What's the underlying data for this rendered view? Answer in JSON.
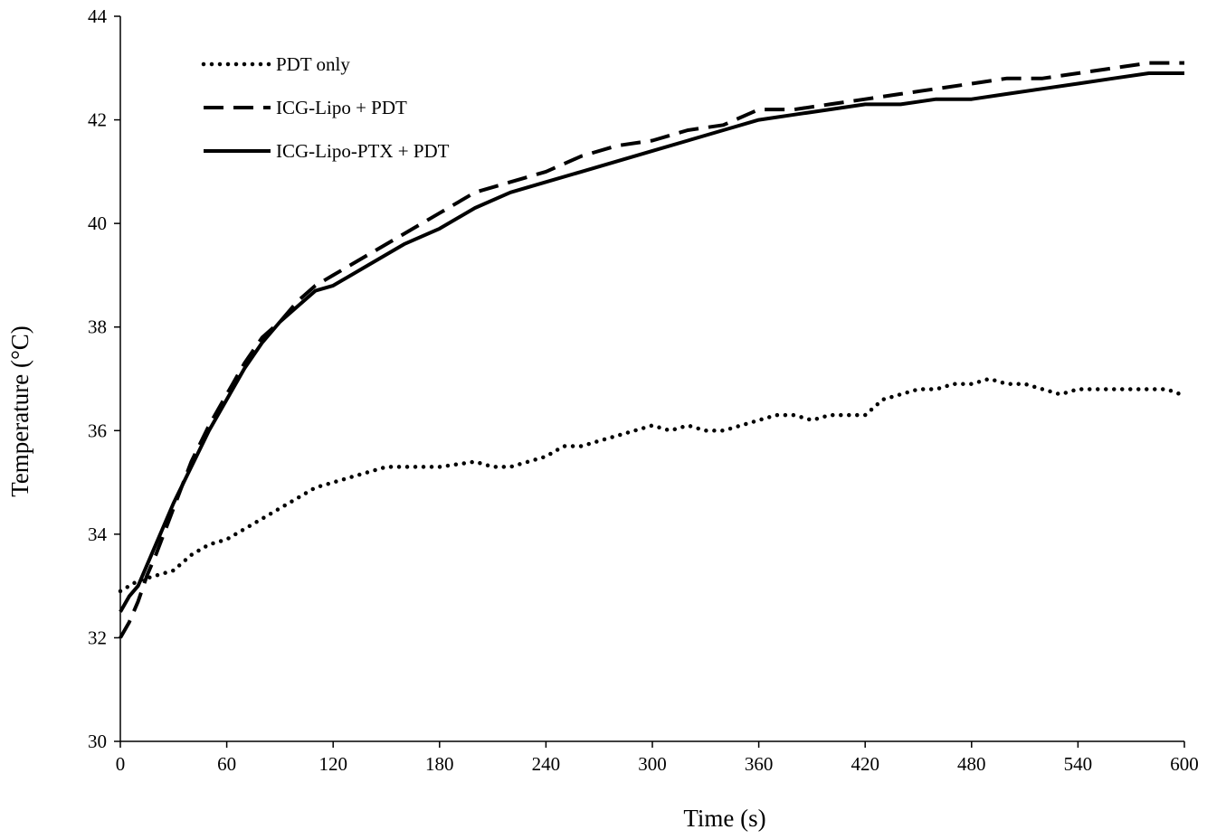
{
  "chart_data": {
    "type": "line",
    "title": "",
    "xlabel": "Time (s)",
    "ylabel": "Temperature (°C)",
    "xlim": [
      0,
      600
    ],
    "ylim": [
      30,
      44
    ],
    "xticks": [
      0,
      60,
      120,
      180,
      240,
      300,
      360,
      420,
      480,
      540,
      600
    ],
    "yticks": [
      30,
      32,
      34,
      36,
      38,
      40,
      42,
      44
    ],
    "grid": false,
    "legend_position": "top-left",
    "series": [
      {
        "name": "PDT only",
        "style": "dotted",
        "color": "#000000",
        "x": [
          0,
          10,
          20,
          30,
          40,
          50,
          60,
          70,
          80,
          90,
          100,
          110,
          120,
          130,
          140,
          150,
          160,
          180,
          200,
          210,
          220,
          230,
          240,
          250,
          260,
          270,
          280,
          290,
          300,
          310,
          320,
          330,
          340,
          350,
          360,
          370,
          380,
          390,
          400,
          420,
          430,
          440,
          450,
          460,
          470,
          480,
          490,
          500,
          510,
          520,
          530,
          540,
          560,
          570,
          580,
          590,
          598
        ],
        "y": [
          32.9,
          33.1,
          33.2,
          33.3,
          33.6,
          33.8,
          33.9,
          34.1,
          34.3,
          34.5,
          34.7,
          34.9,
          35.0,
          35.1,
          35.2,
          35.3,
          35.3,
          35.3,
          35.4,
          35.3,
          35.3,
          35.4,
          35.5,
          35.7,
          35.7,
          35.8,
          35.9,
          36.0,
          36.1,
          36.0,
          36.1,
          36.0,
          36.0,
          36.1,
          36.2,
          36.3,
          36.3,
          36.2,
          36.3,
          36.3,
          36.6,
          36.7,
          36.8,
          36.8,
          36.9,
          36.9,
          37.0,
          36.9,
          36.9,
          36.8,
          36.7,
          36.8,
          36.8,
          36.8,
          36.8,
          36.8,
          36.7
        ]
      },
      {
        "name": "ICG-Lipo + PDT",
        "style": "dashed",
        "color": "#000000",
        "x": [
          0,
          5,
          10,
          15,
          20,
          30,
          40,
          50,
          60,
          70,
          80,
          90,
          100,
          110,
          120,
          140,
          160,
          180,
          200,
          220,
          240,
          260,
          280,
          300,
          320,
          340,
          360,
          380,
          400,
          420,
          440,
          460,
          480,
          500,
          520,
          540,
          560,
          580,
          600
        ],
        "y": [
          32.0,
          32.3,
          32.7,
          33.2,
          33.6,
          34.5,
          35.4,
          36.1,
          36.7,
          37.3,
          37.8,
          38.1,
          38.5,
          38.8,
          39.0,
          39.4,
          39.8,
          40.2,
          40.6,
          40.8,
          41.0,
          41.3,
          41.5,
          41.6,
          41.8,
          41.9,
          42.2,
          42.2,
          42.3,
          42.4,
          42.5,
          42.6,
          42.7,
          42.8,
          42.8,
          42.9,
          43.0,
          43.1,
          43.1
        ]
      },
      {
        "name": "ICG-Lipo-PTX + PDT",
        "style": "solid",
        "color": "#000000",
        "x": [
          0,
          5,
          10,
          15,
          20,
          30,
          40,
          50,
          60,
          70,
          80,
          90,
          100,
          110,
          120,
          140,
          160,
          180,
          200,
          220,
          240,
          260,
          280,
          300,
          320,
          340,
          360,
          380,
          400,
          420,
          440,
          460,
          480,
          500,
          520,
          540,
          560,
          580,
          600
        ],
        "y": [
          32.5,
          32.8,
          33.0,
          33.4,
          33.8,
          34.6,
          35.3,
          36.0,
          36.6,
          37.2,
          37.7,
          38.1,
          38.4,
          38.7,
          38.8,
          39.2,
          39.6,
          39.9,
          40.3,
          40.6,
          40.8,
          41.0,
          41.2,
          41.4,
          41.6,
          41.8,
          42.0,
          42.1,
          42.2,
          42.3,
          42.3,
          42.4,
          42.4,
          42.5,
          42.6,
          42.7,
          42.8,
          42.9,
          42.9
        ]
      }
    ]
  }
}
